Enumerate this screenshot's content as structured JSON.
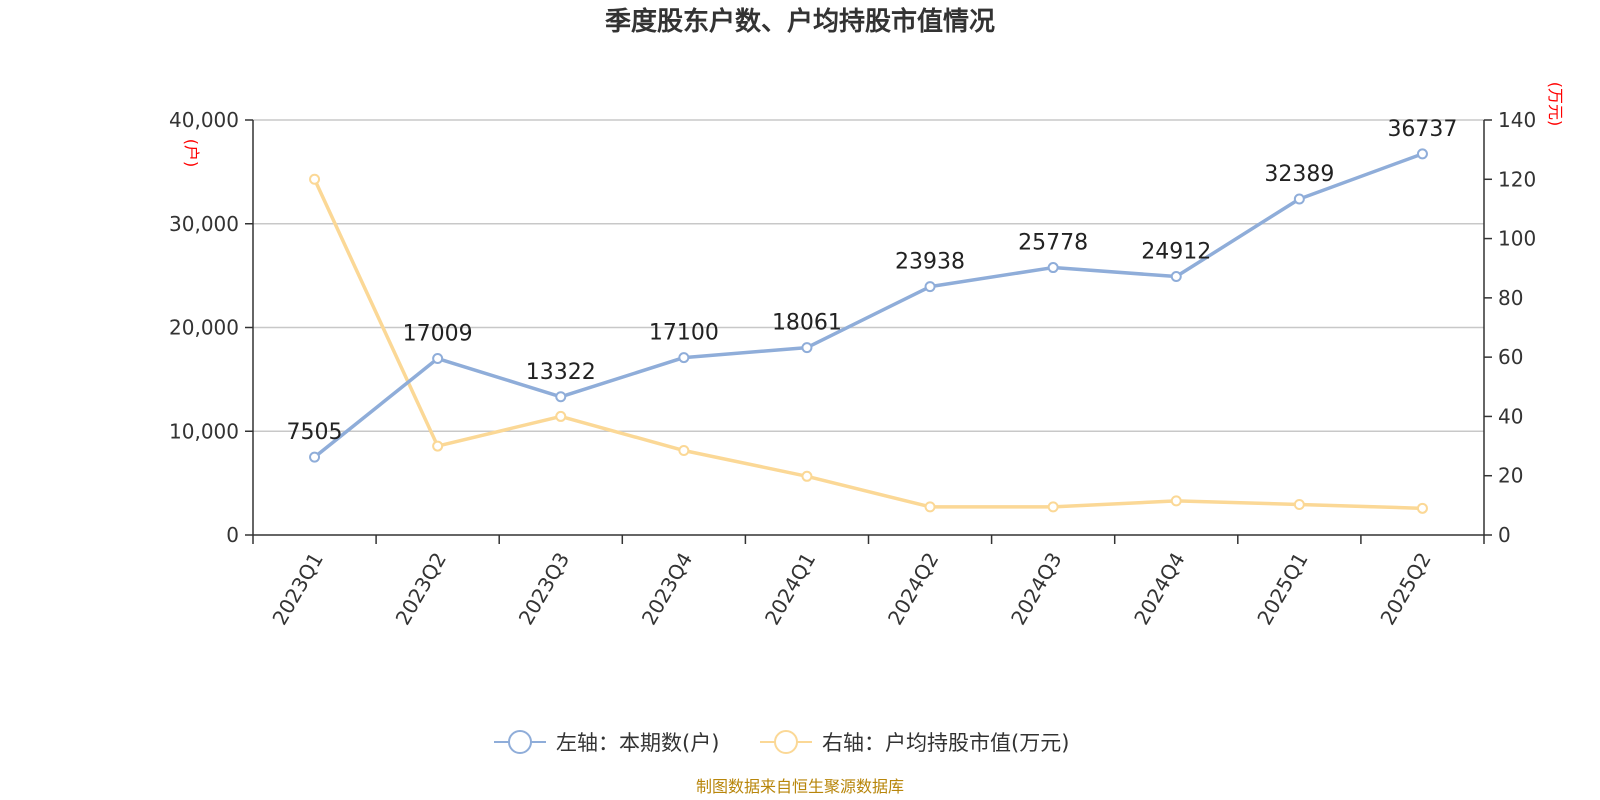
{
  "chart_data": {
    "type": "line",
    "title": "季度股东户数、户均持股市值情况",
    "categories": [
      "2023Q1",
      "2023Q2",
      "2023Q3",
      "2023Q4",
      "2024Q1",
      "2024Q2",
      "2024Q3",
      "2024Q4",
      "2025Q1",
      "2025Q2"
    ],
    "series": [
      {
        "name": "左轴：本期数(户)",
        "axis": "left",
        "color": "#8fadd9",
        "values": [
          7505,
          17009,
          13322,
          17100,
          18061,
          23938,
          25778,
          24912,
          32389,
          36737
        ],
        "show_labels": true
      },
      {
        "name": "右轴：户均持股市值(万元)",
        "axis": "right",
        "color": "#fbd896",
        "values": [
          120,
          30,
          40,
          28.5,
          19.8,
          9.5,
          9.5,
          11.5,
          10.3,
          9
        ],
        "show_labels": false
      }
    ],
    "left_axis": {
      "unit": "(户)",
      "ylim": [
        0,
        40000
      ],
      "ticks": [
        0,
        10000,
        20000,
        30000,
        40000
      ],
      "tick_labels": [
        "0",
        "10,000",
        "20,000",
        "30,000",
        "40,000"
      ]
    },
    "right_axis": {
      "unit": "(万元)",
      "ylim": [
        0,
        140
      ],
      "ticks": [
        0,
        20,
        40,
        60,
        80,
        100,
        120,
        140
      ],
      "tick_labels": [
        "0",
        "20",
        "40",
        "60",
        "80",
        "100",
        "120",
        "140"
      ]
    },
    "grid": true,
    "legend_position": "bottom",
    "source": "制图数据来自恒生聚源数据库"
  }
}
